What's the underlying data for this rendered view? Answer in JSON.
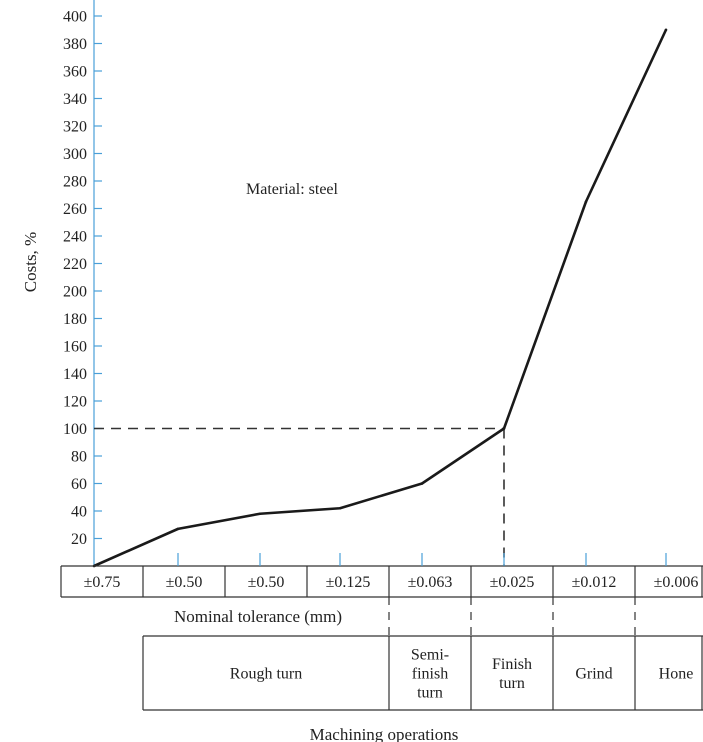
{
  "chart_data": {
    "type": "line",
    "ylabel": "Costs, %",
    "ylim": [
      0,
      400
    ],
    "yticks": [
      20,
      40,
      60,
      80,
      100,
      120,
      140,
      160,
      180,
      200,
      220,
      240,
      260,
      280,
      300,
      320,
      340,
      360,
      380,
      400
    ],
    "tolerances": [
      "±0.75",
      "±0.50",
      "±0.50",
      "±0.125",
      "±0.063",
      "±0.025",
      "±0.012",
      "±0.006"
    ],
    "tolerance_axis_label": "Nominal tolerance (mm)",
    "series": [
      {
        "values": [
          0,
          27,
          38,
          42,
          60,
          100,
          265,
          390
        ]
      }
    ],
    "annotation": "Material: steel",
    "reference": {
      "tolerance": "±0.025",
      "cost": 100
    },
    "operations": [
      {
        "label": "Rough turn",
        "lines": [
          "Rough turn"
        ],
        "span": [
          1,
          4
        ]
      },
      {
        "label": "Semi-finish turn",
        "lines": [
          "Semi-",
          "finish",
          "turn"
        ],
        "span": [
          4,
          5
        ]
      },
      {
        "label": "Finish turn",
        "lines": [
          "Finish",
          "turn"
        ],
        "span": [
          5,
          6
        ]
      },
      {
        "label": "Grind",
        "lines": [
          "Grind"
        ],
        "span": [
          6,
          7
        ]
      },
      {
        "label": "Hone",
        "lines": [
          "Hone"
        ],
        "span": [
          7,
          8
        ]
      }
    ],
    "operations_axis_label": "Machining operations",
    "colors": {
      "line": "#1a1a1a",
      "axis": "#4a9fd8",
      "frame": "#333333"
    }
  }
}
